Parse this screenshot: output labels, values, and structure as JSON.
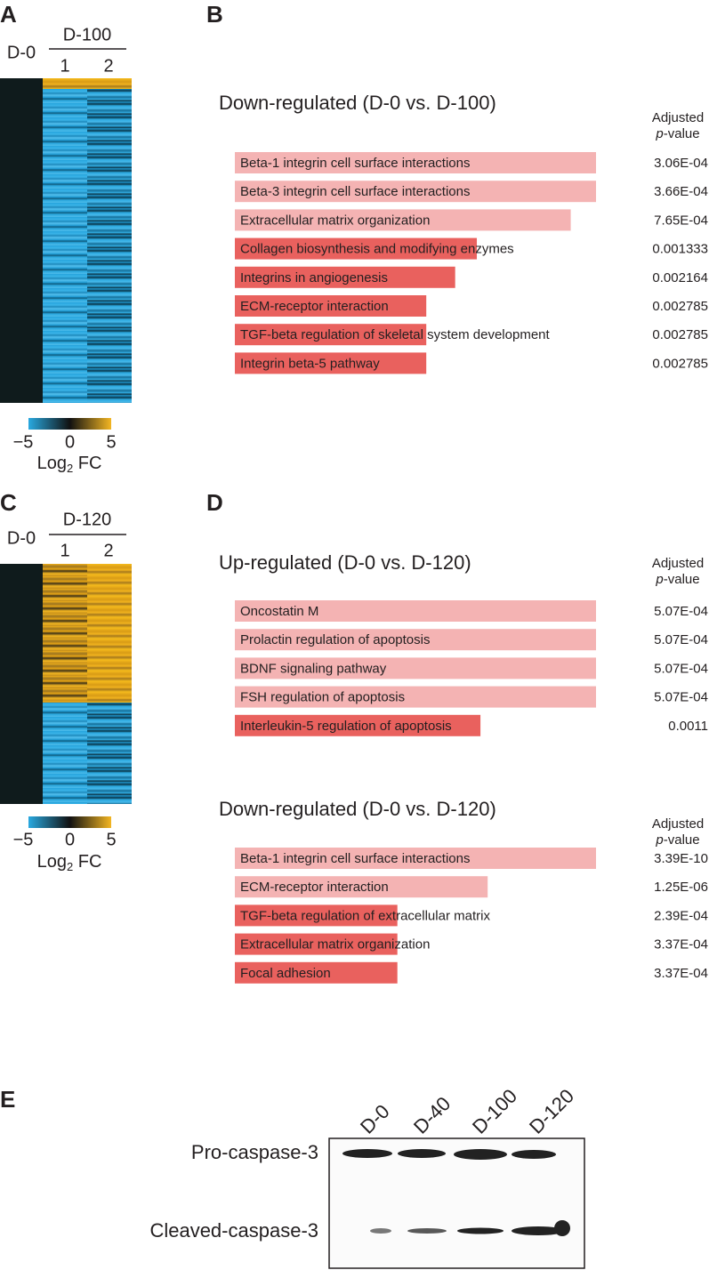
{
  "panel_labels": [
    "A",
    "B",
    "C",
    "D",
    "E"
  ],
  "heatmaps": [
    {
      "control": "D-0",
      "group": "D-100",
      "replicates": [
        "1",
        "2"
      ],
      "colorbar": {
        "ticks": [
          {
            "value": -5,
            "label": "−5"
          },
          0,
          5
        ],
        "label": [
          "Log",
          "2",
          " FC"
        ]
      }
    },
    {
      "control": "D-0",
      "group": "D-120",
      "replicates": [
        "1",
        "2"
      ],
      "colorbar": {
        "ticks": [
          {
            "value": -5,
            "label": "−5"
          },
          0,
          5
        ],
        "label": [
          "Log",
          "2",
          " FC"
        ]
      }
    }
  ],
  "chart_data": [
    {
      "type": "bar",
      "title": "Down-regulated (D-0 vs. D-100)",
      "value_header": [
        "Adjusted",
        "p",
        "-value"
      ],
      "categories": [
        "Beta-1 integrin cell surface interactions",
        "Beta-3 integrin cell surface interactions",
        "Extracellular matrix organization",
        "Collagen biosynthesis and modifying enzymes",
        "Integrins in angiogenesis",
        "ECM-receptor interaction",
        "TGF-beta regulation of skeletal system development",
        "Integrin beta-5 pathway"
      ],
      "values": [
        100,
        100,
        93,
        67,
        61,
        53,
        53,
        53
      ],
      "adjusted_p_values": [
        "3.06E-04",
        "3.66E-04",
        "7.65E-04",
        "0.001333",
        "0.002164",
        "0.002785",
        "0.002785",
        "0.002785"
      ],
      "colors": [
        "#f4b3b3",
        "#f4b3b3",
        "#f4b3b3",
        "#e9615e",
        "#e9615e",
        "#e9615e",
        "#e9615e",
        "#e9615e"
      ],
      "xlim": [
        0,
        100
      ]
    },
    {
      "type": "bar",
      "title": "Up-regulated (D-0 vs. D-120)",
      "value_header": [
        "Adjusted",
        "p",
        "-value"
      ],
      "categories": [
        "Oncostatin M",
        "Prolactin regulation of apoptosis",
        "BDNF signaling pathway",
        "FSH regulation of apoptosis",
        "Interleukin-5 regulation of apoptosis"
      ],
      "values": [
        100,
        100,
        100,
        100,
        68
      ],
      "adjusted_p_values": [
        "5.07E-04",
        "5.07E-04",
        "5.07E-04",
        "5.07E-04",
        "0.0011"
      ],
      "colors": [
        "#f4b3b3",
        "#f4b3b3",
        "#f4b3b3",
        "#f4b3b3",
        "#e9615e"
      ],
      "xlim": [
        0,
        100
      ]
    },
    {
      "type": "bar",
      "title": "Down-regulated (D-0 vs. D-120)",
      "value_header": [
        "Adjusted",
        "p",
        "-value"
      ],
      "categories": [
        "Beta-1 integrin cell surface interactions",
        "ECM-receptor interaction",
        "TGF-beta regulation of extracellular matrix",
        "Extracellular matrix organization",
        "Focal adhesion"
      ],
      "values": [
        100,
        70,
        45,
        45,
        45
      ],
      "adjusted_p_values": [
        "3.39E-10",
        "1.25E-06",
        "2.39E-04",
        "3.37E-04",
        "3.37E-04"
      ],
      "colors": [
        "#f4b3b3",
        "#f4b3b3",
        "#e9615e",
        "#e9615e",
        "#e9615e"
      ],
      "xlim": [
        0,
        100
      ]
    }
  ],
  "blot": {
    "lanes": [
      "D-0",
      "D-40",
      "D-100",
      "D-120"
    ],
    "bands": [
      "Pro-caspase-3",
      "Cleaved-caspase-3"
    ]
  }
}
